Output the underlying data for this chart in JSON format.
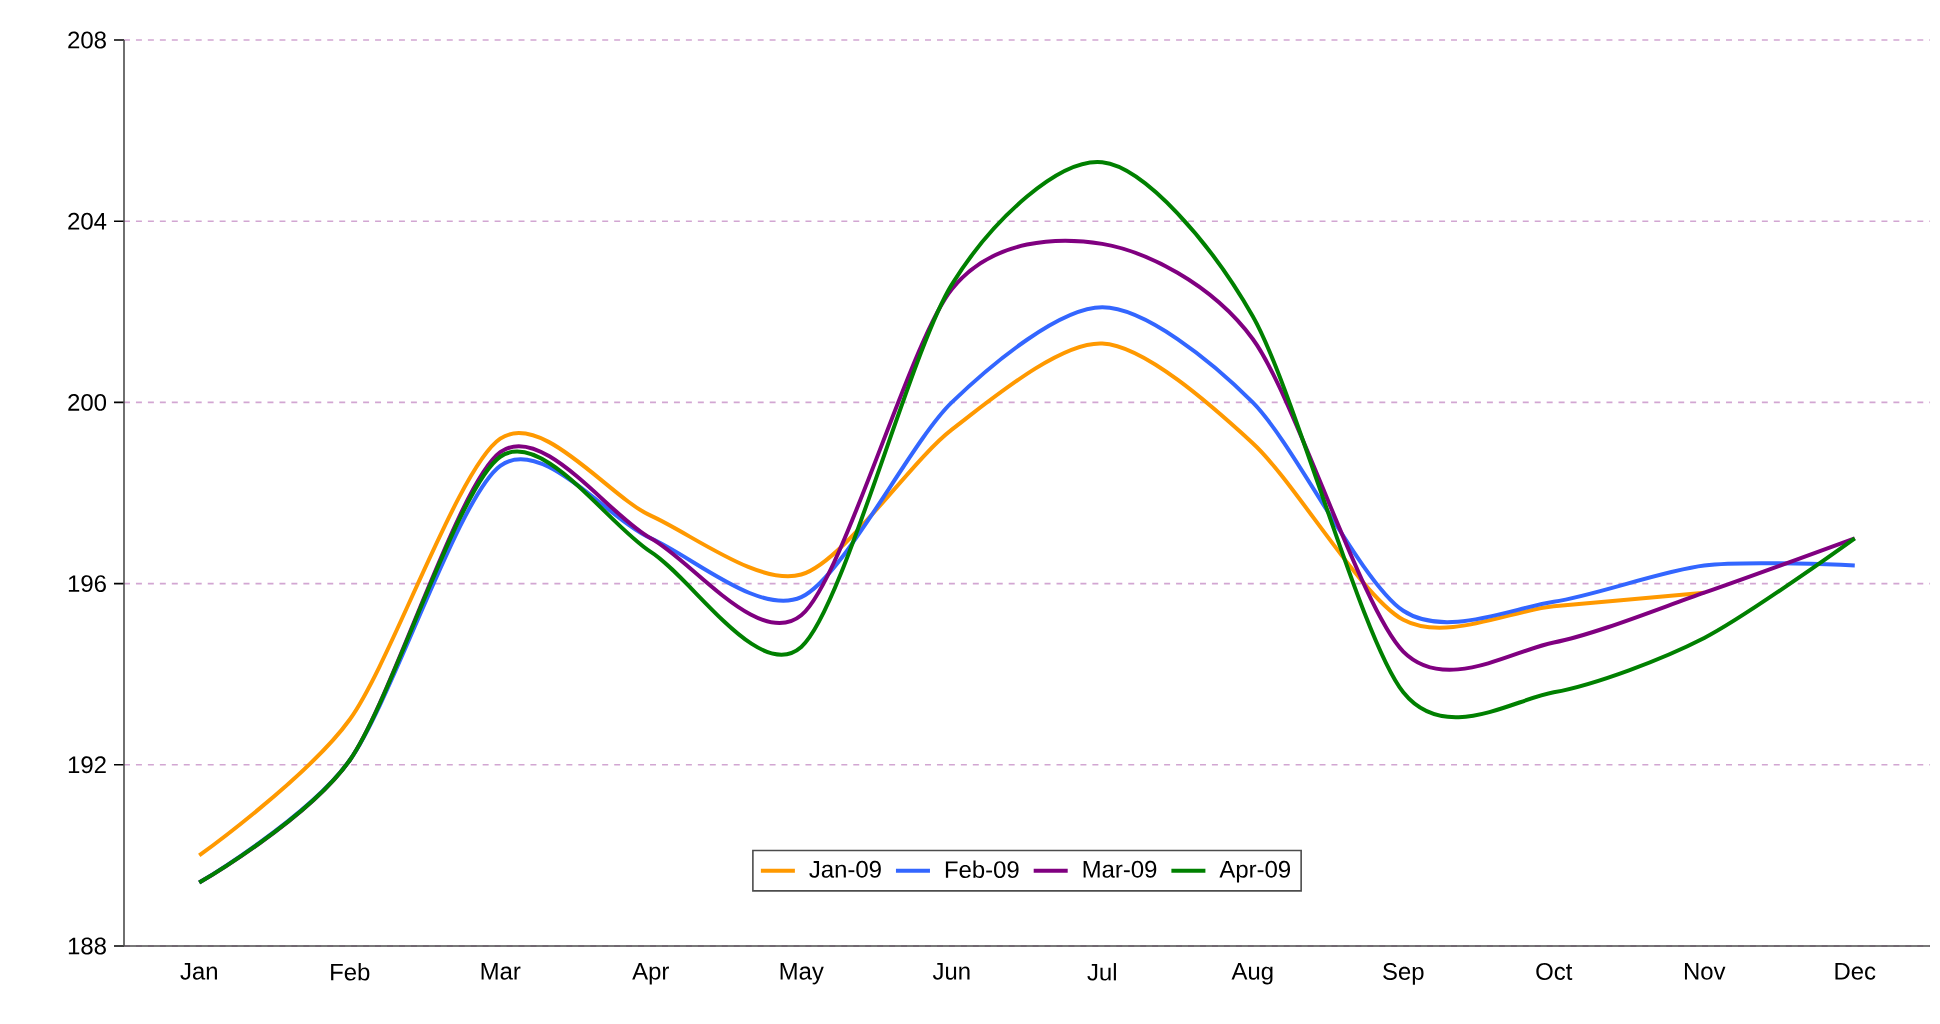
{
  "chart_data": {
    "type": "line",
    "categories": [
      "Jan",
      "Feb",
      "Mar",
      "Apr",
      "May",
      "Jun",
      "Jul",
      "Aug",
      "Sep",
      "Oct",
      "Nov",
      "Dec"
    ],
    "series": [
      {
        "name": "Jan-09",
        "color": "#ff9900",
        "values": [
          190.0,
          193.0,
          199.2,
          197.5,
          196.2,
          199.4,
          201.3,
          199.1,
          195.2,
          195.5,
          195.8,
          null
        ]
      },
      {
        "name": "Feb-09",
        "color": "#3366ff",
        "values": [
          189.4,
          192.1,
          198.6,
          197.0,
          195.7,
          200.0,
          202.1,
          200.0,
          195.4,
          195.6,
          196.4,
          196.4
        ]
      },
      {
        "name": "Mar-09",
        "color": "#800080",
        "values": [
          189.4,
          192.1,
          198.9,
          197.0,
          195.3,
          202.5,
          203.5,
          201.4,
          194.5,
          194.7,
          195.8,
          197.0
        ]
      },
      {
        "name": "Apr-09",
        "color": "#008000",
        "values": [
          189.4,
          192.1,
          198.8,
          196.7,
          194.6,
          202.6,
          205.3,
          201.9,
          193.6,
          193.6,
          194.8,
          197.0
        ]
      }
    ],
    "ylim": [
      188,
      208
    ],
    "yticks": [
      188,
      192,
      196,
      200,
      204,
      208
    ],
    "grid": "y",
    "legend": "bottom",
    "marker": "none",
    "line_style": "solid"
  }
}
